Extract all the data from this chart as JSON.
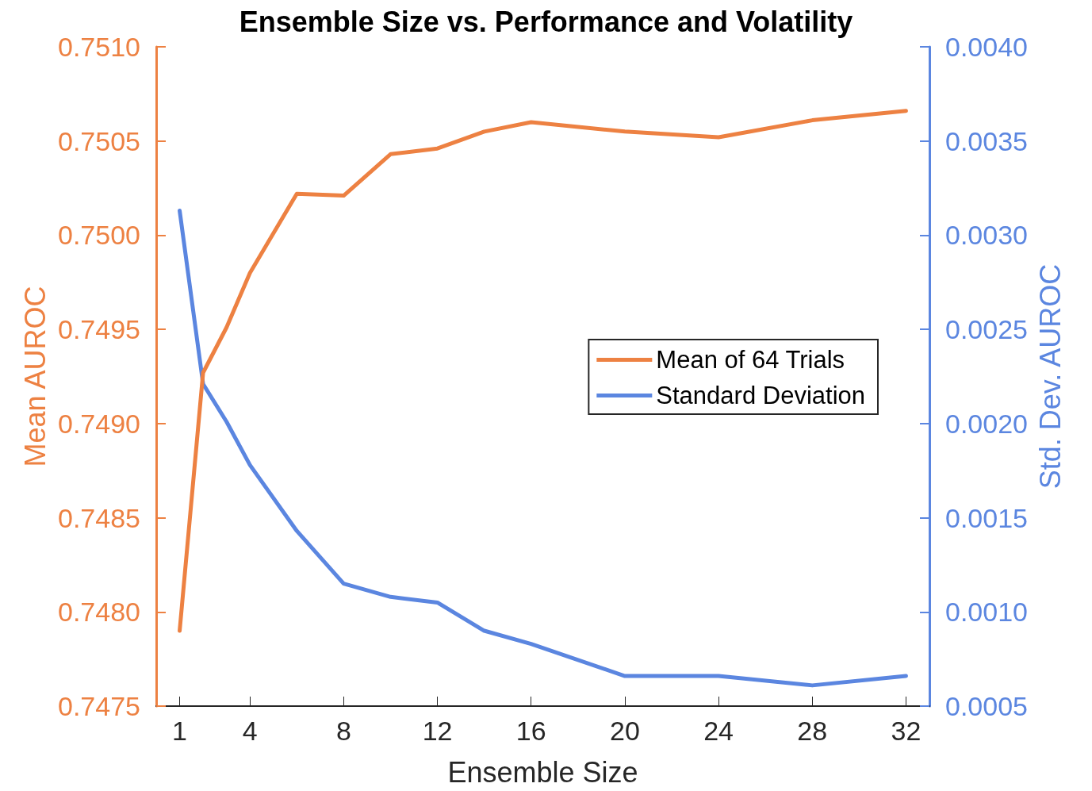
{
  "chart_data": {
    "type": "line",
    "title": "Ensemble Size vs. Performance and Volatility",
    "xlabel": "Ensemble Size",
    "ylabel": "Mean AUROC",
    "y2label": "Std. Dev. AUROC",
    "x": [
      1,
      2,
      3,
      4,
      6,
      8,
      10,
      12,
      14,
      16,
      20,
      24,
      28,
      32
    ],
    "xlim": [
      0,
      33
    ],
    "xticks": [
      1,
      4,
      8,
      12,
      16,
      20,
      24,
      28,
      32
    ],
    "ylim": [
      0.7475,
      0.751
    ],
    "yticks": [
      0.7475,
      {
        "value": 0.748,
        "label": "0.7480"
      },
      0.7485,
      {
        "value": 0.749,
        "label": "0.7490"
      },
      0.7495,
      {
        "value": 0.75,
        "label": "0.7500"
      },
      0.7505,
      {
        "value": 0.751,
        "label": "0.7510"
      }
    ],
    "y2lim": [
      0.0005,
      0.004
    ],
    "y2ticks": [
      0.0005,
      {
        "value": 0.001,
        "label": "0.0010"
      },
      0.0015,
      {
        "value": 0.002,
        "label": "0.0020"
      },
      0.0025,
      {
        "value": 0.003,
        "label": "0.0030"
      },
      0.0035,
      {
        "value": 0.004,
        "label": "0.0040"
      }
    ],
    "series": [
      {
        "name": "Mean of 64 Trials",
        "color": "#ed8142",
        "values": [
          0.7479,
          0.74927,
          0.74951,
          0.7498,
          0.75022,
          0.75021,
          0.75043,
          0.75046,
          0.75055,
          0.7506,
          0.75055,
          0.75052,
          0.75061,
          0.75066
        ]
      },
      {
        "name": "Standard Deviation",
        "color": "#5b86e0",
        "axis": "y2",
        "values": [
          0.00313,
          0.00221,
          0.00201,
          0.00178,
          0.00143,
          0.00115,
          0.00108,
          0.00105,
          0.0009,
          0.00083,
          0.00066,
          0.00066,
          0.00061,
          0.00066
        ]
      }
    ],
    "grid": false,
    "legend": "right",
    "marker": "none",
    "line_style": "solid"
  }
}
